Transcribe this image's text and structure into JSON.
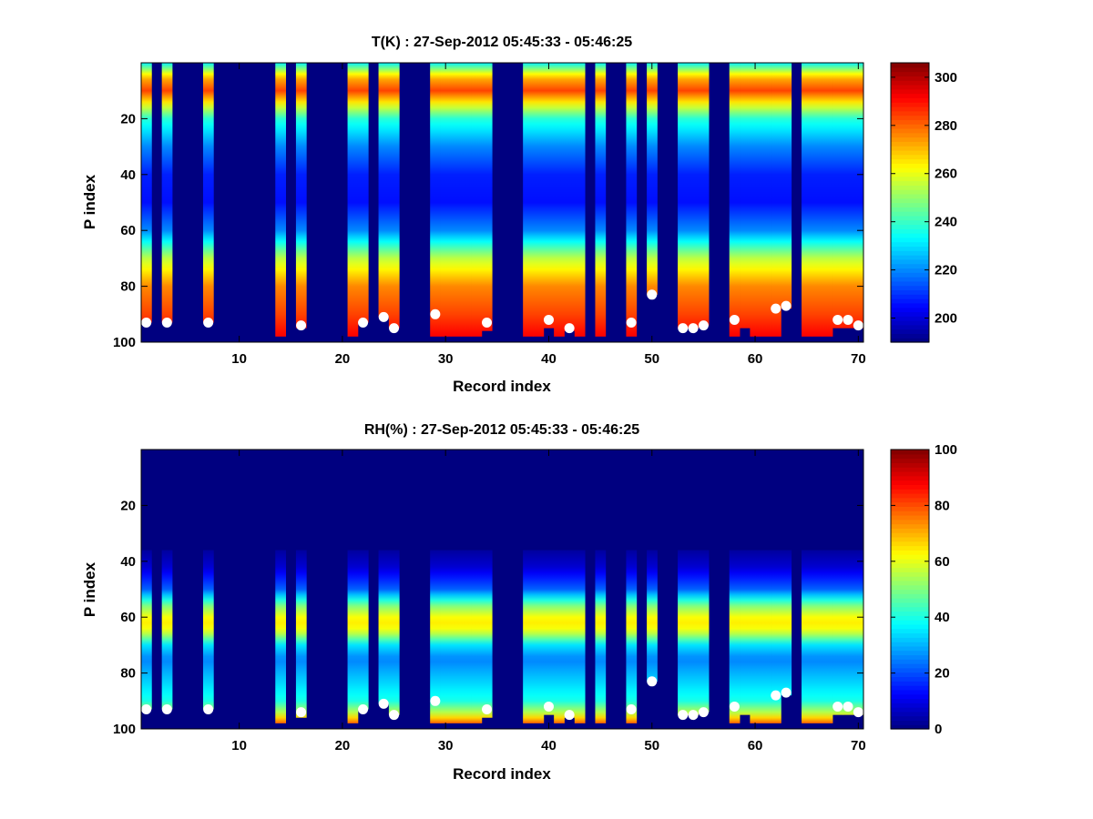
{
  "chart_data": [
    {
      "type": "heatmap",
      "title": "T(K) : 27-Sep-2012 05:45:33 - 05:46:25",
      "xlabel": "Record index",
      "ylabel": "P index",
      "xlim": [
        0.5,
        70.5
      ],
      "ylim": [
        100,
        0
      ],
      "xticks": [
        10,
        20,
        30,
        40,
        50,
        60,
        70
      ],
      "yticks": [
        20,
        40,
        60,
        80,
        100
      ],
      "colormap": "jet",
      "clim": [
        190,
        306
      ],
      "colorbar_ticks": [
        200,
        220,
        240,
        260,
        280,
        300
      ],
      "background_value": 190,
      "profile_columns": [
        1,
        3,
        7,
        14,
        16,
        21,
        22,
        24,
        25,
        29,
        30,
        31,
        32,
        33,
        34,
        38,
        39,
        40,
        41,
        42,
        43,
        45,
        48,
        50,
        53,
        54,
        55,
        58,
        59,
        60,
        61,
        62,
        63,
        65,
        66,
        67,
        68,
        69,
        70
      ],
      "column_bottom_p": {
        "1": 93,
        "3": 93,
        "7": 93,
        "14": 98,
        "16": 95,
        "21": 98,
        "22": 93,
        "24": 91,
        "25": 95,
        "29": 98,
        "30": 98,
        "31": 98,
        "32": 98,
        "33": 98,
        "34": 96,
        "38": 98,
        "39": 98,
        "40": 95,
        "41": 98,
        "42": 96,
        "43": 98,
        "45": 98,
        "48": 98,
        "50": 83,
        "53": 95,
        "54": 95,
        "55": 94,
        "58": 98,
        "59": 95,
        "60": 98,
        "61": 98,
        "62": 98,
        "63": 88,
        "65": 98,
        "66": 98,
        "67": 98,
        "68": 95,
        "69": 95,
        "70": 95
      },
      "column_top_p": 0,
      "profile_p": [
        0,
        5,
        10,
        20,
        30,
        40,
        50,
        60,
        70,
        80,
        90,
        98
      ],
      "profile_values": [
        232,
        270,
        284,
        238,
        220,
        208,
        206,
        220,
        255,
        276,
        284,
        292
      ],
      "surface_markers": {
        "x": [
          1,
          3,
          7,
          16,
          22,
          24,
          25,
          29,
          34,
          40,
          42,
          48,
          50,
          53,
          54,
          55,
          58,
          62,
          63,
          68,
          69,
          70
        ],
        "y": [
          93,
          93,
          93,
          94,
          93,
          91,
          95,
          90,
          93,
          92,
          95,
          93,
          83,
          95,
          95,
          94,
          92,
          88,
          87,
          92,
          92,
          94
        ]
      }
    },
    {
      "type": "heatmap",
      "title": "RH(%) : 27-Sep-2012 05:45:33 - 05:46:25",
      "xlabel": "Record index",
      "ylabel": "P index",
      "xlim": [
        0.5,
        70.5
      ],
      "ylim": [
        100,
        0
      ],
      "xticks": [
        10,
        20,
        30,
        40,
        50,
        60,
        70
      ],
      "yticks": [
        20,
        40,
        60,
        80,
        100
      ],
      "colormap": "jet",
      "clim": [
        0,
        100
      ],
      "colorbar_ticks": [
        0,
        20,
        40,
        60,
        80,
        100
      ],
      "background_value": 0,
      "profile_columns": [
        1,
        3,
        7,
        14,
        16,
        21,
        22,
        24,
        25,
        29,
        30,
        31,
        32,
        33,
        34,
        38,
        39,
        40,
        41,
        42,
        43,
        45,
        48,
        50,
        53,
        54,
        55,
        58,
        59,
        60,
        61,
        62,
        63,
        65,
        66,
        67,
        68,
        69,
        70
      ],
      "column_bottom_p": {
        "1": 93,
        "3": 93,
        "7": 93,
        "14": 98,
        "16": 96,
        "21": 98,
        "22": 93,
        "24": 91,
        "25": 95,
        "29": 98,
        "30": 98,
        "31": 98,
        "32": 98,
        "33": 98,
        "34": 96,
        "38": 98,
        "39": 98,
        "40": 95,
        "41": 98,
        "42": 96,
        "43": 98,
        "45": 98,
        "48": 98,
        "50": 83,
        "53": 95,
        "54": 95,
        "55": 94,
        "58": 98,
        "59": 95,
        "60": 98,
        "61": 98,
        "62": 98,
        "63": 88,
        "65": 98,
        "66": 98,
        "67": 98,
        "68": 95,
        "69": 95,
        "70": 95
      },
      "column_top_p": 36,
      "profile_p": [
        36,
        42,
        50,
        56,
        60,
        63,
        66,
        70,
        75,
        80,
        85,
        90,
        94,
        98
      ],
      "profile_values": [
        3,
        8,
        22,
        50,
        62,
        65,
        55,
        35,
        25,
        30,
        35,
        40,
        55,
        78
      ],
      "surface_markers": {
        "x": [
          1,
          3,
          7,
          16,
          22,
          24,
          25,
          29,
          34,
          40,
          42,
          48,
          50,
          53,
          54,
          55,
          58,
          62,
          63,
          68,
          69,
          70
        ],
        "y": [
          93,
          93,
          93,
          94,
          93,
          91,
          95,
          90,
          93,
          92,
          95,
          93,
          83,
          95,
          95,
          94,
          92,
          88,
          87,
          92,
          92,
          94
        ]
      }
    }
  ]
}
